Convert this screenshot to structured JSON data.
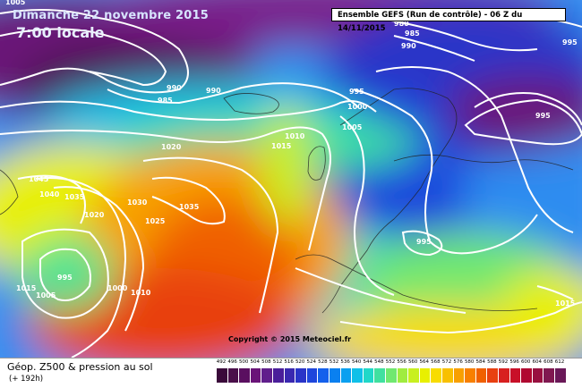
{
  "header": {
    "date": "Dimanche 22 novembre 2015",
    "local_time": "7:00 locale",
    "run_info": "Ensemble GEFS  (Run de contrôle)  -  06 Z du 14/11/2015"
  },
  "footer": {
    "title": "Géop. Z500 & pression au sol",
    "subtitle": "(+ 192h)",
    "copyright": "Copyright © 2015 Meteociel.fr"
  },
  "legend": {
    "values": [
      "492",
      "496",
      "500",
      "504",
      "508",
      "512",
      "516",
      "520",
      "524",
      "528",
      "532",
      "536",
      "540",
      "544",
      "548",
      "552",
      "556",
      "560",
      "564",
      "568",
      "572",
      "576",
      "580",
      "584",
      "588",
      "592",
      "596",
      "600",
      "604",
      "608",
      "612"
    ],
    "colors": [
      "#3a0a3a",
      "#4a0f4a",
      "#5a0f60",
      "#6a1478",
      "#601e8c",
      "#4a1e9a",
      "#3a28b0",
      "#2a34c8",
      "#1e46dc",
      "#1460ec",
      "#0a80f0",
      "#0aa0f0",
      "#10c0e8",
      "#20d8c8",
      "#40e0a0",
      "#70e870",
      "#a0ec40",
      "#c8f020",
      "#e8f000",
      "#f8dc00",
      "#f8c000",
      "#f8a000",
      "#f88000",
      "#f06000",
      "#e84010",
      "#d82020",
      "#c81028",
      "#b00830",
      "#981040",
      "#801850",
      "#6a1858"
    ]
  },
  "isobars": [
    "1005",
    "980",
    "985",
    "990",
    "995",
    "990",
    "990",
    "985",
    "995",
    "1000",
    "1005",
    "1010",
    "1015",
    "1020",
    "1045",
    "1040",
    "1035",
    "1030",
    "1025",
    "1035",
    "1020",
    "995",
    "1015",
    "1005",
    "1000",
    "1010",
    "995",
    "1015"
  ]
}
